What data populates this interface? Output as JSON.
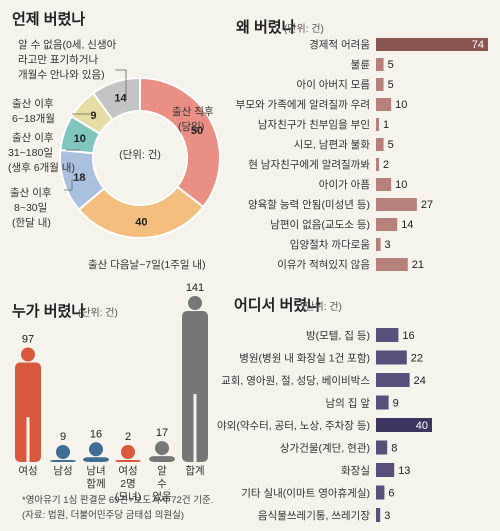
{
  "chart_data": [
    {
      "type": "pie",
      "variant": "donut",
      "title": "언제 버렸나",
      "unit": "(단위: 건)",
      "center_label": "(단위: 건)",
      "slices": [
        {
          "label": "출산 직후 (당일)",
          "value": 50,
          "color": "#e98f86"
        },
        {
          "label": "출산 다음날~7일(1주일 내)",
          "value": 40,
          "color": "#f4bf7e"
        },
        {
          "label": "출산 이후 8~30일 (한달 내)",
          "value": 18,
          "color": "#a9c1df"
        },
        {
          "label": "출산 이후 31~180일 (생후 6개월 내)",
          "value": 10,
          "color": "#7fc7be"
        },
        {
          "label": "출산 이후 6~18개월",
          "value": 9,
          "color": "#e7dda4"
        },
        {
          "label": "알 수 없음(0세, 신생아 라고만 표기하거나 개월수 안나와 있음)",
          "value": 14,
          "color": "#c4c4c4"
        }
      ]
    },
    {
      "type": "bar",
      "orientation": "horizontal",
      "title": "왜 버렸나",
      "unit": "(단위: 건)",
      "categories": [
        "경제적 어려움",
        "불륜",
        "아이 아버지 모름",
        "부모와 가족에게 알려질까 우려",
        "남자친구가 친부임을 부인",
        "시모, 남편과 불화",
        "현 남자친구에게 알려질까봐",
        "아이가 아픔",
        "양육할 능력 안됨(미성년 등)",
        "남편이 없음(교도소 등)",
        "입양절차 까다로움",
        "이유가 적혀있지 않음"
      ],
      "values": [
        74,
        5,
        5,
        10,
        1,
        5,
        2,
        10,
        27,
        14,
        3,
        21
      ],
      "color": "#b6817b",
      "highlight_color": "#8c5650"
    },
    {
      "type": "bar",
      "variant": "pictograph",
      "title": "누가 버렸나",
      "unit": "(단위: 건)",
      "categories": [
        "여성",
        "남성",
        "남녀 함께",
        "여성 2명 (모녀)",
        "알 수 없음",
        "합계"
      ],
      "values": [
        97,
        9,
        16,
        2,
        17,
        141
      ],
      "colors": [
        "#d9593f",
        "#3f6d94",
        "#3f6d94",
        "#d9593f",
        "#777777",
        "#777777"
      ]
    },
    {
      "type": "bar",
      "orientation": "horizontal",
      "title": "어디서 버렸나",
      "unit": "(단위: 건)",
      "categories": [
        "방(모텔, 집 등)",
        "병원(병원 내 화장실 1건 포함)",
        "교회, 영아원, 절, 성당, 베이비박스",
        "남의 집 앞",
        "야외(약수터, 공터, 노상, 주차장 등)",
        "상가건물(계단, 현관)",
        "화장실",
        "기타 실내(이마트 영아휴게실)",
        "음식물쓰레기통, 쓰레기장"
      ],
      "values": [
        16,
        22,
        24,
        9,
        40,
        8,
        13,
        6,
        3
      ],
      "color": "#58507a",
      "highlight_color": "#3b3560"
    }
  ],
  "footnote": {
    "line1": "*영아유기 1심 판결문 69건+보도기사 72건 기준.",
    "line2": "(자료: 법원, 더불어민주당 금태섭 의원실)"
  }
}
